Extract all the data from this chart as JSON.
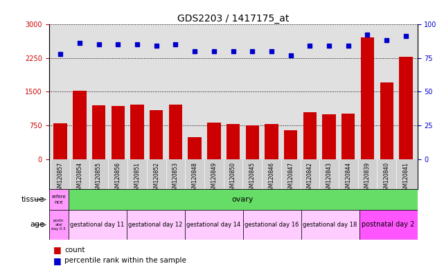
{
  "title": "GDS2203 / 1417175_at",
  "samples": [
    "GSM120857",
    "GSM120854",
    "GSM120855",
    "GSM120856",
    "GSM120851",
    "GSM120852",
    "GSM120853",
    "GSM120848",
    "GSM120849",
    "GSM120850",
    "GSM120845",
    "GSM120846",
    "GSM120847",
    "GSM120842",
    "GSM120843",
    "GSM120844",
    "GSM120839",
    "GSM120840",
    "GSM120841"
  ],
  "counts": [
    800,
    1530,
    1200,
    1180,
    1220,
    1100,
    1210,
    490,
    820,
    780,
    760,
    790,
    650,
    1050,
    1000,
    1020,
    2700,
    1700,
    2280
  ],
  "percentiles": [
    78,
    86,
    85,
    85,
    85,
    84,
    85,
    80,
    80,
    80,
    80,
    80,
    77,
    84,
    84,
    84,
    92,
    88,
    91
  ],
  "ylim_left": [
    0,
    3000
  ],
  "ylim_right": [
    0,
    100
  ],
  "yticks_left": [
    0,
    750,
    1500,
    2250,
    3000
  ],
  "yticks_right": [
    0,
    25,
    50,
    75,
    100
  ],
  "bar_color": "#cc0000",
  "dot_color": "#0000cc",
  "chart_bg": "#e0e0e0",
  "xtick_bg": "#d0d0d0",
  "tissue_ref_color": "#ff99ff",
  "tissue_ovary_color": "#66dd66",
  "age_ref_color": "#ff99ff",
  "age_gestational_color": "#ffccff",
  "age_postnatal_color": "#ff55ff",
  "legend_count_color": "#cc0000",
  "legend_pct_color": "#0000cc",
  "groups": [
    {
      "label": "gestational day 11",
      "count": 3
    },
    {
      "label": "gestational day 12",
      "count": 3
    },
    {
      "label": "gestational day 14",
      "count": 3
    },
    {
      "label": "gestational day 16",
      "count": 3
    },
    {
      "label": "gestational day 18",
      "count": 3
    },
    {
      "label": "postnatal day 2",
      "count": 3
    }
  ]
}
